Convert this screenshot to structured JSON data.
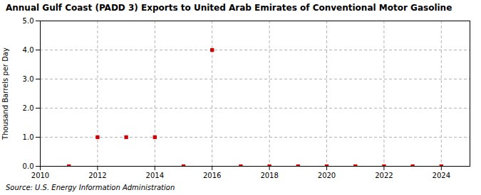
{
  "chart_data": {
    "type": "scatter",
    "title": "Annual Gulf Coast (PADD 3) Exports to United Arab Emirates of Conventional Motor Gasoline",
    "ylabel": "Thousand Barrels per Day",
    "source": "Source: U.S. Energy Information Administration",
    "x": [
      2011,
      2012,
      2013,
      2014,
      2015,
      2016,
      2017,
      2018,
      2019,
      2020,
      2021,
      2022,
      2023,
      2024
    ],
    "values": [
      0.0,
      1.0,
      1.0,
      1.0,
      0.0,
      4.0,
      0.0,
      0.0,
      0.0,
      0.0,
      0.0,
      0.0,
      0.0,
      0.0
    ],
    "color": "#cc0000",
    "marker": "square",
    "xlim": [
      2010,
      2025
    ],
    "xticks": [
      2010,
      2012,
      2014,
      2016,
      2018,
      2020,
      2022,
      2024
    ],
    "ylim": [
      0.0,
      5.0
    ],
    "yticks": [
      {
        "value": 0.0,
        "label": "0.0"
      },
      {
        "value": 1.0,
        "label": "1.0"
      },
      {
        "value": 2.0,
        "label": "2.0"
      },
      {
        "value": 3.0,
        "label": "3.0"
      },
      {
        "value": 4.0,
        "label": "4.0"
      },
      {
        "value": 5.0,
        "label": "5.0"
      }
    ],
    "grid": true
  }
}
